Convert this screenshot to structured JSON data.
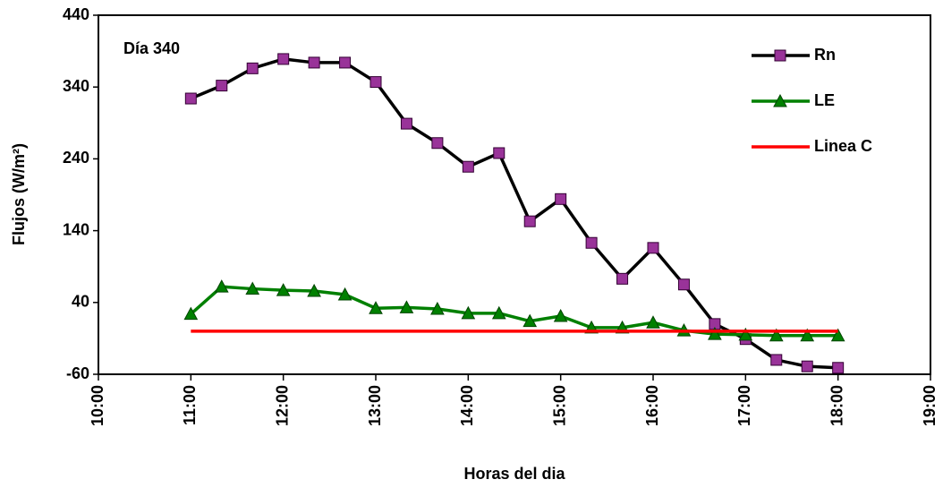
{
  "chart_data": {
    "type": "line",
    "annotation": "Día 340",
    "x_label": "Horas del dia",
    "y_label": "Flujos (W/m²)",
    "x": [
      11,
      11.3333,
      11.6667,
      12,
      12.3333,
      12.6667,
      13,
      13.3333,
      13.6667,
      14,
      14.3333,
      14.6667,
      15,
      15.3333,
      15.6667,
      16,
      16.3333,
      16.6667,
      17,
      17.3333,
      17.6667,
      18
    ],
    "series": [
      {
        "name": "Rn",
        "color": "#993399",
        "line_color": "#000000",
        "marker": "square",
        "values": [
          324,
          342,
          366,
          379,
          374,
          374,
          347,
          289,
          262,
          229,
          248,
          153,
          184,
          123,
          73,
          116,
          65,
          10,
          -11,
          -40,
          -49,
          -51
        ]
      },
      {
        "name": "LE",
        "color": "#008000",
        "line_color": "#008000",
        "marker": "triangle",
        "values": [
          24,
          62,
          59,
          57,
          56,
          51,
          32,
          33,
          31,
          25,
          25,
          14,
          21,
          5,
          5,
          12,
          1,
          -4,
          -5,
          -6,
          -6,
          -6
        ]
      },
      {
        "name": "Linea C",
        "color": "#ff0000",
        "line_color": "#ff0000",
        "values": [
          0,
          0,
          0,
          0,
          0,
          0,
          0,
          0,
          0,
          0,
          0,
          0,
          0,
          0,
          0,
          0,
          0,
          0,
          0,
          0,
          0,
          0
        ]
      }
    ],
    "xlim": [
      10,
      19
    ],
    "xticks": [
      {
        "value": 10,
        "label": "10:00"
      },
      {
        "value": 11,
        "label": "11:00"
      },
      {
        "value": 12,
        "label": "12:00"
      },
      {
        "value": 13,
        "label": "13:00"
      },
      {
        "value": 14,
        "label": "14:00"
      },
      {
        "value": 15,
        "label": "15:00"
      },
      {
        "value": 16,
        "label": "16:00"
      },
      {
        "value": 17,
        "label": "17:00"
      },
      {
        "value": 18,
        "label": "18:00"
      },
      {
        "value": 19,
        "label": "19:00"
      }
    ],
    "ylim": [
      -60,
      440
    ],
    "yticks": [
      -60,
      40,
      140,
      240,
      340,
      440
    ],
    "legend": "upper right"
  }
}
